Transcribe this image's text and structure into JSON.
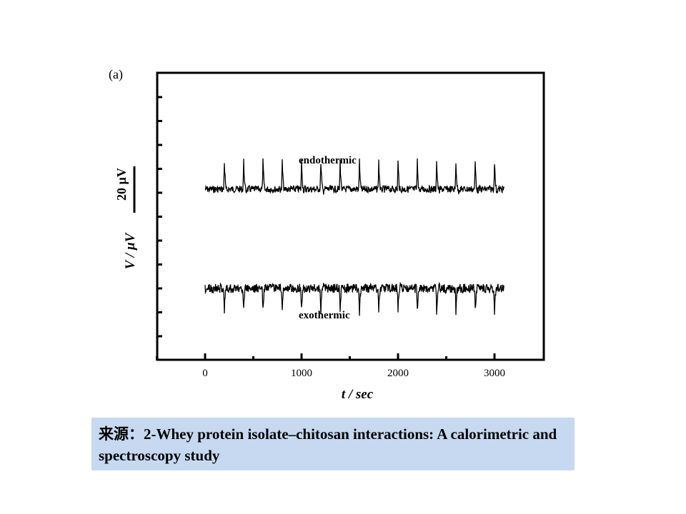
{
  "chart_data": {
    "type": "line",
    "panel_label": "(a)",
    "xlabel": "t / sec",
    "ylabel": "V / µV",
    "xlim": [
      -500,
      3500
    ],
    "x_ticks": [
      0,
      1000,
      2000,
      3000
    ],
    "x_tick_labels": [
      "0",
      "1000",
      "2000",
      "3000"
    ],
    "scale_bar_label": "20 µV",
    "scale_bar_value_uV": 20,
    "grid": false,
    "series": [
      {
        "name": "endothermic",
        "x_start": 0,
        "x_end": 3100,
        "peak_times": [
          200,
          400,
          600,
          800,
          1000,
          1200,
          1400,
          1600,
          1800,
          2000,
          2200,
          2400,
          2600,
          2800,
          3000
        ],
        "peak_direction": "up",
        "peak_amplitude_uV": 12,
        "noise_amplitude_uV": 1.5
      },
      {
        "name": "exothermic",
        "x_start": 0,
        "x_end": 3100,
        "peak_times": [
          200,
          400,
          600,
          800,
          1000,
          1200,
          1400,
          1600,
          1800,
          2000,
          2200,
          2400,
          2600,
          2800,
          3000
        ],
        "peak_direction": "down",
        "peak_amplitude_uV": 10,
        "noise_amplitude_uV": 2
      }
    ]
  },
  "source": {
    "prefix": "来源：",
    "text": "2-Whey protein isolate–chitosan interactions: A calorimetric and spectroscopy study"
  }
}
